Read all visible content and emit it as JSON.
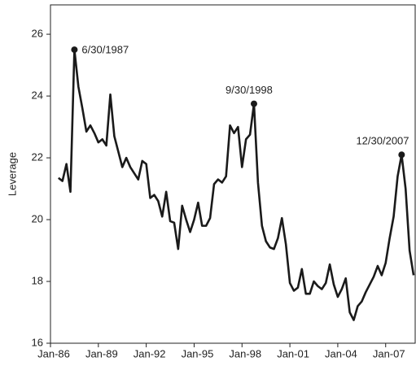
{
  "chart_data": {
    "type": "line",
    "y_label": "Leverage",
    "x": [
      1986.5,
      1986.75,
      1987,
      1987.25,
      1987.5,
      1987.75,
      1988,
      1988.25,
      1988.5,
      1988.75,
      1989,
      1989.25,
      1989.5,
      1989.75,
      1990,
      1990.25,
      1990.5,
      1990.75,
      1991,
      1991.25,
      1991.5,
      1991.75,
      1992,
      1992.25,
      1992.5,
      1992.75,
      1993,
      1993.25,
      1993.5,
      1993.75,
      1994,
      1994.25,
      1994.5,
      1994.75,
      1995,
      1995.25,
      1995.5,
      1995.75,
      1996,
      1996.25,
      1996.5,
      1996.75,
      1997,
      1997.25,
      1997.5,
      1997.75,
      1998,
      1998.25,
      1998.5,
      1998.75,
      1999,
      1999.25,
      1999.5,
      1999.75,
      2000,
      2000.25,
      2000.5,
      2000.75,
      2001,
      2001.25,
      2001.5,
      2001.75,
      2002,
      2002.25,
      2002.5,
      2002.75,
      2003,
      2003.25,
      2003.5,
      2003.75,
      2004,
      2004.25,
      2004.5,
      2004.75,
      2005,
      2005.25,
      2005.5,
      2005.75,
      2006,
      2006.25,
      2006.5,
      2006.75,
      2007,
      2007.25,
      2007.5,
      2007.75,
      2008,
      2008.25,
      2008.5,
      2008.75
    ],
    "series": [
      {
        "color": "#1a1a1a",
        "values": [
          21.35,
          21.25,
          21.8,
          20.9,
          25.5,
          24.3,
          23.6,
          22.85,
          23.05,
          22.8,
          22.5,
          22.6,
          22.4,
          24.05,
          22.7,
          22.2,
          21.7,
          22.0,
          21.7,
          21.5,
          21.3,
          21.9,
          21.8,
          20.7,
          20.8,
          20.6,
          20.1,
          20.9,
          19.95,
          19.9,
          19.05,
          20.45,
          20.0,
          19.6,
          20.0,
          20.55,
          19.8,
          19.8,
          20.05,
          21.15,
          21.3,
          21.2,
          21.4,
          23.05,
          22.8,
          23.0,
          21.7,
          22.6,
          22.75,
          23.75,
          21.2,
          19.8,
          19.3,
          19.1,
          19.05,
          19.4,
          20.05,
          19.2,
          17.95,
          17.7,
          17.8,
          18.4,
          17.6,
          17.6,
          18.0,
          17.85,
          17.75,
          17.95,
          18.55,
          17.9,
          17.5,
          17.75,
          18.1,
          17.0,
          16.75,
          17.2,
          17.35,
          17.65,
          17.9,
          18.15,
          18.5,
          18.2,
          18.6,
          19.4,
          20.1,
          21.4,
          22.1,
          21.0,
          19.0,
          18.2
        ]
      }
    ],
    "annotations": [
      {
        "text": "6/30/1987",
        "x": 1987.5
      },
      {
        "text": "9/30/1998",
        "x": 1998.75
      },
      {
        "text": "12/30/2007",
        "x": 2008
      }
    ],
    "xlim": [
      1986,
      2008.85
    ],
    "xticks": [
      {
        "value": 1986,
        "label": "Jan-86"
      },
      {
        "value": 1989,
        "label": "Jan-89"
      },
      {
        "value": 1992,
        "label": "Jan-92"
      },
      {
        "value": 1995,
        "label": "Jan-95"
      },
      {
        "value": 1998,
        "label": "Jan-98"
      },
      {
        "value": 2001,
        "label": "Jan-01"
      },
      {
        "value": 2004,
        "label": "Jan-04"
      },
      {
        "value": 2007,
        "label": "Jan-07"
      }
    ],
    "ylim": [
      16,
      26.95
    ],
    "yticks": [
      16,
      18,
      20,
      22,
      24,
      26
    ],
    "grid": false
  }
}
